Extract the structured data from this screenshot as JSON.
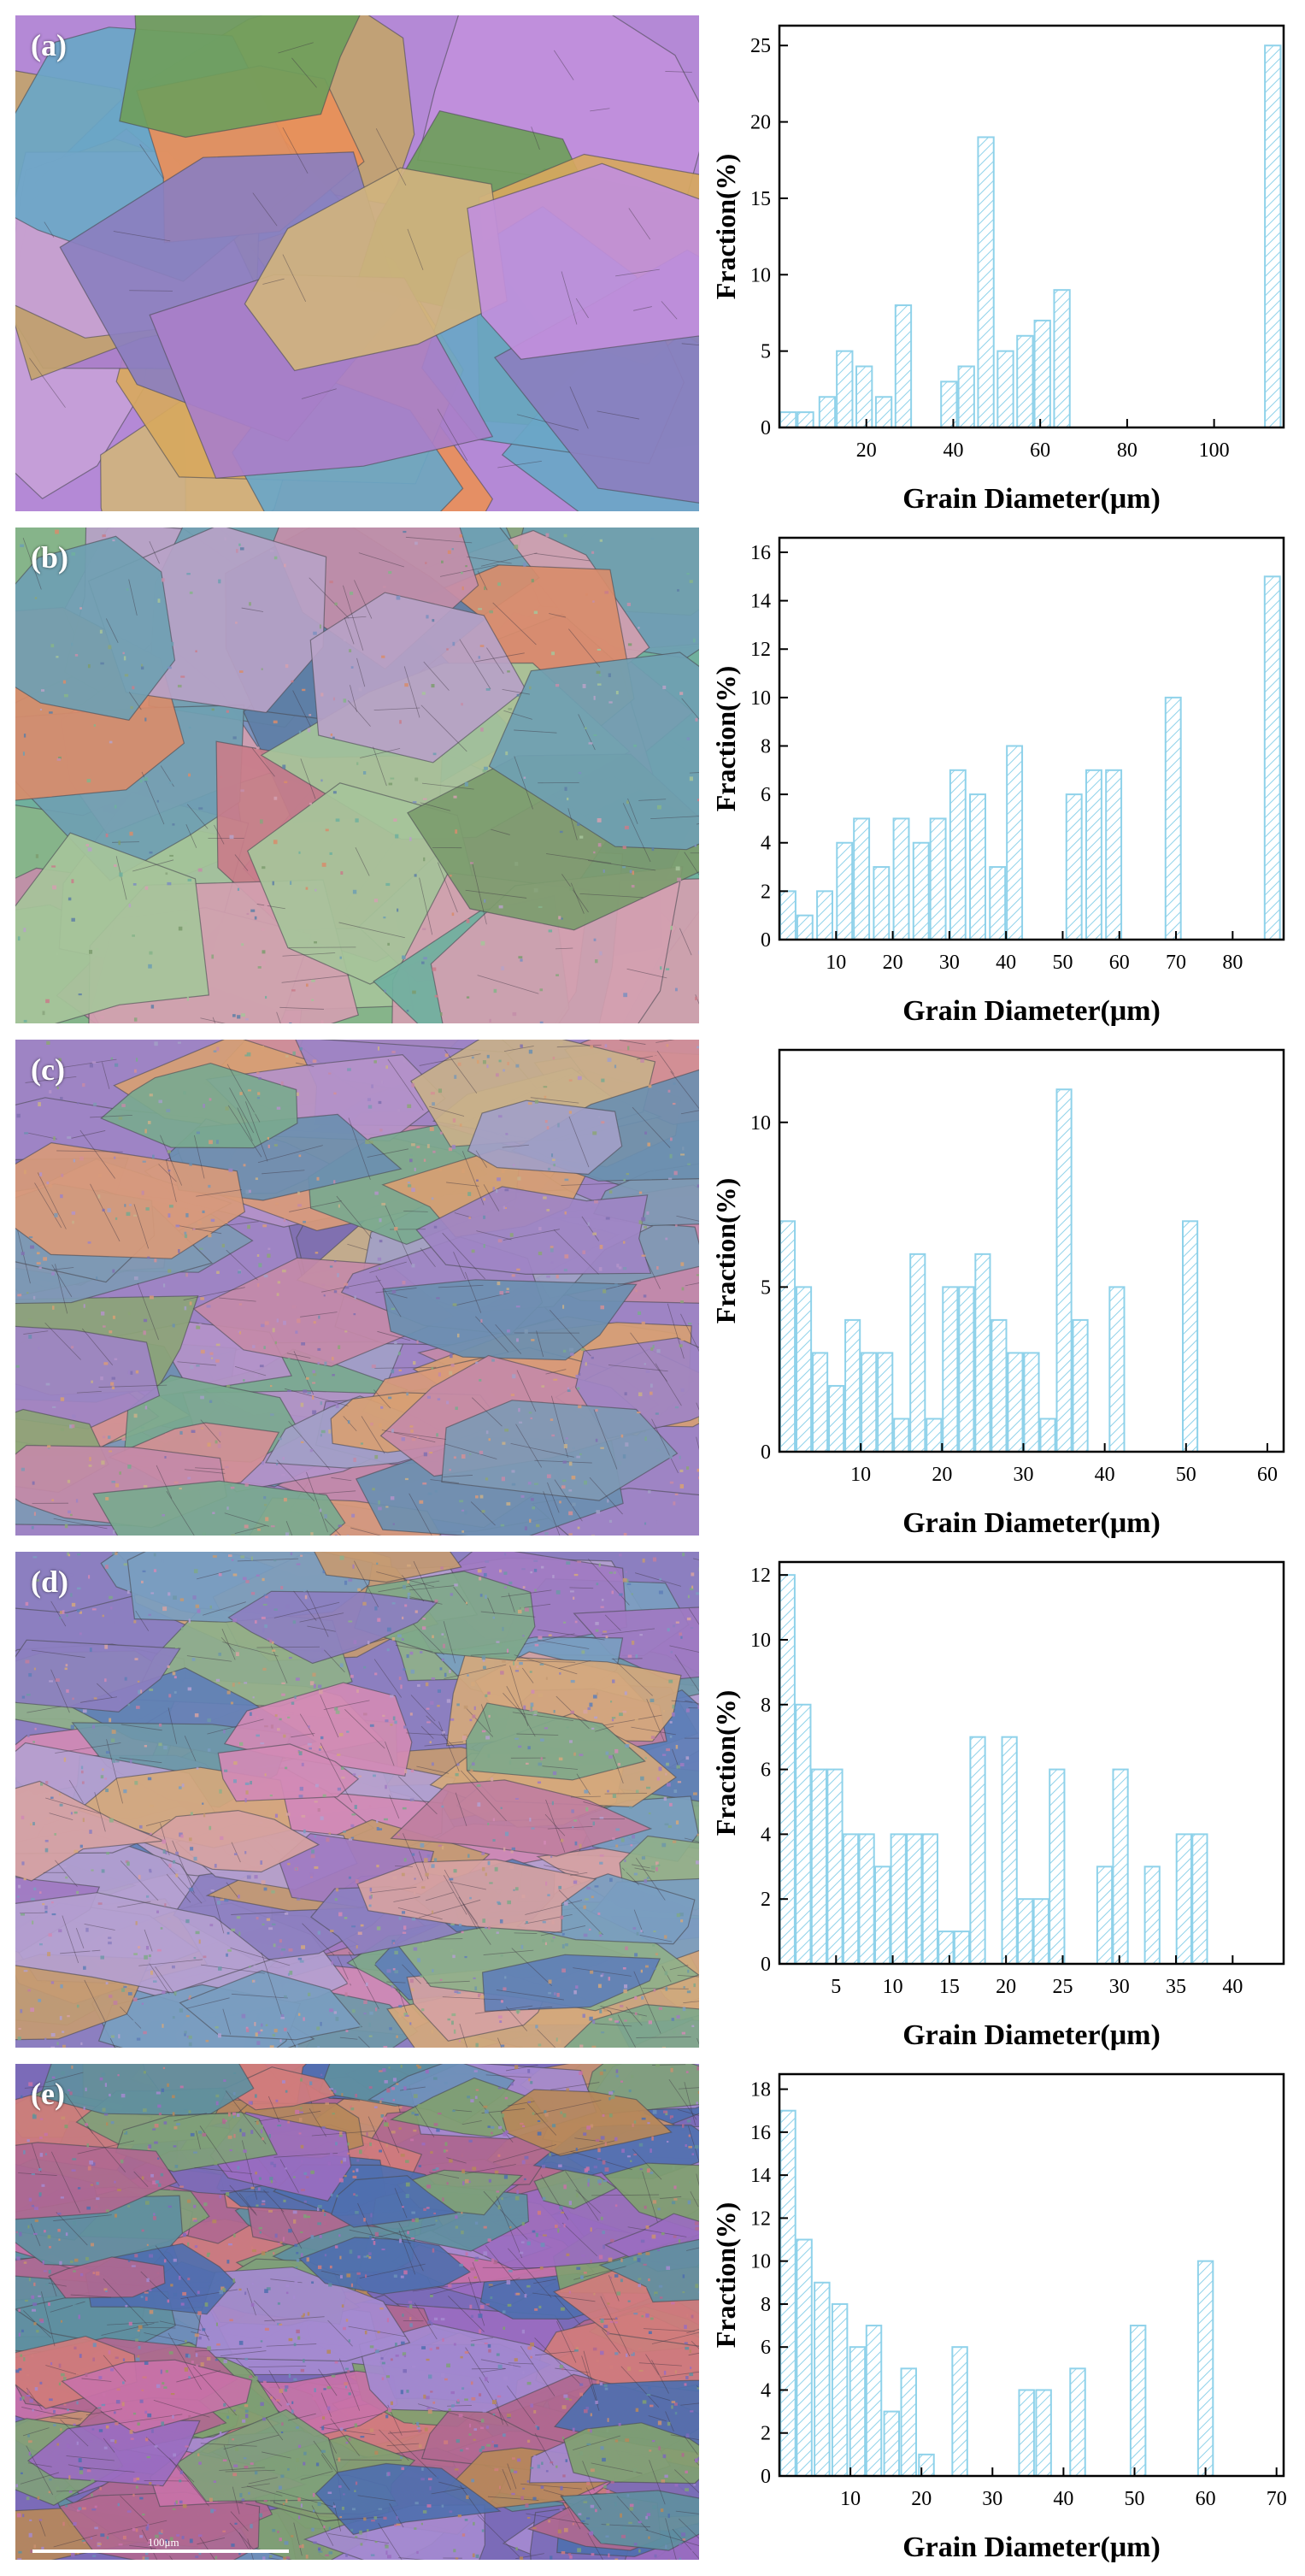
{
  "panels": [
    {
      "label": "(a)",
      "palette": [
        "#b489d6",
        "#c18fdc",
        "#a97fc9",
        "#6f9e5b",
        "#8aa86a",
        "#c2a36e",
        "#d0b37e",
        "#e98f5a",
        "#6aa6c7",
        "#9ab0a0",
        "#c7a0d8",
        "#d7a85e",
        "#8b7fbf"
      ]
    },
    {
      "label": "(b)",
      "palette": [
        "#86b48a",
        "#6f9fb2",
        "#c48ea9",
        "#d88c6b",
        "#8aa47c",
        "#7d8fc0",
        "#b7a2c7",
        "#6fb09e",
        "#d3a0b0",
        "#7c9c6e",
        "#a6c49a",
        "#5e7fa6",
        "#c97d8a"
      ]
    },
    {
      "label": "(c)",
      "palette": [
        "#9e84c4",
        "#c48aa8",
        "#7e99b4",
        "#d7a073",
        "#8ca477",
        "#6b8fb0",
        "#b493c9",
        "#d38f95",
        "#7aa98f",
        "#a2a0c7",
        "#c8b08a",
        "#8070b0",
        "#d89a7a"
      ]
    },
    {
      "label": "(d)",
      "palette": [
        "#8c7fc0",
        "#d18ab5",
        "#7a9dc0",
        "#c49a72",
        "#7fa88a",
        "#a07ac2",
        "#d6a2a2",
        "#6f98a8",
        "#b4a0d0",
        "#c07fa0",
        "#8fb08a",
        "#5f7fb7",
        "#d4a87c"
      ]
    },
    {
      "label": "(e)",
      "palette": [
        "#7b6bb8",
        "#c872a8",
        "#6c90b8",
        "#b6885a",
        "#7fa07a",
        "#9a6cc0",
        "#d07c7c",
        "#5f8f9f",
        "#a48ad0",
        "#b06890",
        "#80a070",
        "#4f6faf",
        "#c99070"
      ],
      "scale_text": "100μm"
    }
  ],
  "chart_data": [
    {
      "type": "bar",
      "xlabel": "Grain Diameter(μm)",
      "ylabel": "Fraction(%)",
      "xlim": [
        0,
        116
      ],
      "ylim": [
        0,
        26.3
      ],
      "xticks": [
        20,
        40,
        60,
        80,
        100
      ],
      "yticks": [
        0,
        5,
        10,
        15,
        20,
        25
      ],
      "bar_width": 3.6,
      "bars": [
        {
          "x": 2,
          "y": 1
        },
        {
          "x": 6,
          "y": 1
        },
        {
          "x": 11,
          "y": 2
        },
        {
          "x": 15,
          "y": 5
        },
        {
          "x": 19.5,
          "y": 4
        },
        {
          "x": 24,
          "y": 2
        },
        {
          "x": 28.5,
          "y": 8
        },
        {
          "x": 39,
          "y": 3
        },
        {
          "x": 43,
          "y": 4
        },
        {
          "x": 47.5,
          "y": 19
        },
        {
          "x": 52,
          "y": 5
        },
        {
          "x": 56.5,
          "y": 6
        },
        {
          "x": 60.5,
          "y": 7
        },
        {
          "x": 65,
          "y": 9
        },
        {
          "x": 113.5,
          "y": 25
        }
      ]
    },
    {
      "type": "bar",
      "xlabel": "Grain Diameter(μm)",
      "ylabel": "Fraction(%)",
      "xlim": [
        0,
        89
      ],
      "ylim": [
        0,
        16.6
      ],
      "xticks": [
        10,
        20,
        30,
        40,
        50,
        60,
        70,
        80
      ],
      "yticks": [
        0,
        2,
        4,
        6,
        8,
        10,
        12,
        14,
        16
      ],
      "bar_width": 2.7,
      "bars": [
        {
          "x": 1.5,
          "y": 2
        },
        {
          "x": 4.5,
          "y": 1
        },
        {
          "x": 8,
          "y": 2
        },
        {
          "x": 11.5,
          "y": 4
        },
        {
          "x": 14.5,
          "y": 5
        },
        {
          "x": 18,
          "y": 3
        },
        {
          "x": 21.5,
          "y": 5
        },
        {
          "x": 25,
          "y": 4
        },
        {
          "x": 28,
          "y": 5
        },
        {
          "x": 31.5,
          "y": 7
        },
        {
          "x": 35,
          "y": 6
        },
        {
          "x": 38.5,
          "y": 3
        },
        {
          "x": 41.5,
          "y": 8
        },
        {
          "x": 52,
          "y": 6
        },
        {
          "x": 55.5,
          "y": 7
        },
        {
          "x": 59,
          "y": 7
        },
        {
          "x": 69.5,
          "y": 10
        },
        {
          "x": 87,
          "y": 15
        }
      ]
    },
    {
      "type": "bar",
      "xlabel": "Grain Diameter(μm)",
      "ylabel": "Fraction(%)",
      "xlim": [
        0,
        62
      ],
      "ylim": [
        0,
        12.2
      ],
      "xticks": [
        10,
        20,
        30,
        40,
        50,
        60
      ],
      "yticks": [
        0,
        5,
        10
      ],
      "bar_width": 1.8,
      "bars": [
        {
          "x": 1,
          "y": 7
        },
        {
          "x": 3,
          "y": 5
        },
        {
          "x": 5,
          "y": 3
        },
        {
          "x": 7,
          "y": 2
        },
        {
          "x": 9,
          "y": 4
        },
        {
          "x": 11,
          "y": 3
        },
        {
          "x": 13,
          "y": 3
        },
        {
          "x": 15,
          "y": 1
        },
        {
          "x": 17,
          "y": 6
        },
        {
          "x": 19,
          "y": 1
        },
        {
          "x": 21,
          "y": 5
        },
        {
          "x": 23,
          "y": 5
        },
        {
          "x": 25,
          "y": 6
        },
        {
          "x": 27,
          "y": 4
        },
        {
          "x": 29,
          "y": 3
        },
        {
          "x": 31,
          "y": 3
        },
        {
          "x": 33,
          "y": 1
        },
        {
          "x": 35,
          "y": 11
        },
        {
          "x": 37,
          "y": 4
        },
        {
          "x": 41.5,
          "y": 5
        },
        {
          "x": 50.5,
          "y": 7
        }
      ]
    },
    {
      "type": "bar",
      "xlabel": "Grain Diameter(μm)",
      "ylabel": "Fraction(%)",
      "xlim": [
        0,
        44.5
      ],
      "ylim": [
        0,
        12.4
      ],
      "xticks": [
        5,
        10,
        15,
        20,
        25,
        30,
        35,
        40
      ],
      "yticks": [
        0,
        2,
        4,
        6,
        8,
        10,
        12
      ],
      "bar_width": 1.3,
      "bars": [
        {
          "x": 0.7,
          "y": 12
        },
        {
          "x": 2.1,
          "y": 8
        },
        {
          "x": 3.5,
          "y": 6
        },
        {
          "x": 4.9,
          "y": 6
        },
        {
          "x": 6.3,
          "y": 4
        },
        {
          "x": 7.7,
          "y": 4
        },
        {
          "x": 9.1,
          "y": 3
        },
        {
          "x": 10.5,
          "y": 4
        },
        {
          "x": 11.9,
          "y": 4
        },
        {
          "x": 13.3,
          "y": 4
        },
        {
          "x": 14.7,
          "y": 1
        },
        {
          "x": 16.1,
          "y": 1
        },
        {
          "x": 17.5,
          "y": 7
        },
        {
          "x": 20.3,
          "y": 7
        },
        {
          "x": 21.7,
          "y": 2
        },
        {
          "x": 23.1,
          "y": 2
        },
        {
          "x": 24.5,
          "y": 6
        },
        {
          "x": 28.7,
          "y": 3
        },
        {
          "x": 30.1,
          "y": 6
        },
        {
          "x": 32.9,
          "y": 3
        },
        {
          "x": 35.7,
          "y": 4
        },
        {
          "x": 37.1,
          "y": 4
        }
      ]
    },
    {
      "type": "bar",
      "xlabel": "Grain Diameter(μm)",
      "ylabel": "Fraction(%)",
      "xlim": [
        0,
        71
      ],
      "ylim": [
        0,
        18.7
      ],
      "xticks": [
        10,
        20,
        30,
        40,
        50,
        60,
        70
      ],
      "yticks": [
        0,
        2,
        4,
        6,
        8,
        10,
        12,
        14,
        16,
        18
      ],
      "bar_width": 2.1,
      "bars": [
        {
          "x": 1.2,
          "y": 17
        },
        {
          "x": 3.5,
          "y": 11
        },
        {
          "x": 6,
          "y": 9
        },
        {
          "x": 8.5,
          "y": 8
        },
        {
          "x": 11,
          "y": 6
        },
        {
          "x": 13.3,
          "y": 7
        },
        {
          "x": 15.8,
          "y": 3
        },
        {
          "x": 18.2,
          "y": 5
        },
        {
          "x": 20.7,
          "y": 1
        },
        {
          "x": 25.4,
          "y": 6
        },
        {
          "x": 34.8,
          "y": 4
        },
        {
          "x": 37.2,
          "y": 4
        },
        {
          "x": 42,
          "y": 5
        },
        {
          "x": 50.5,
          "y": 7
        },
        {
          "x": 60,
          "y": 10
        }
      ]
    }
  ]
}
